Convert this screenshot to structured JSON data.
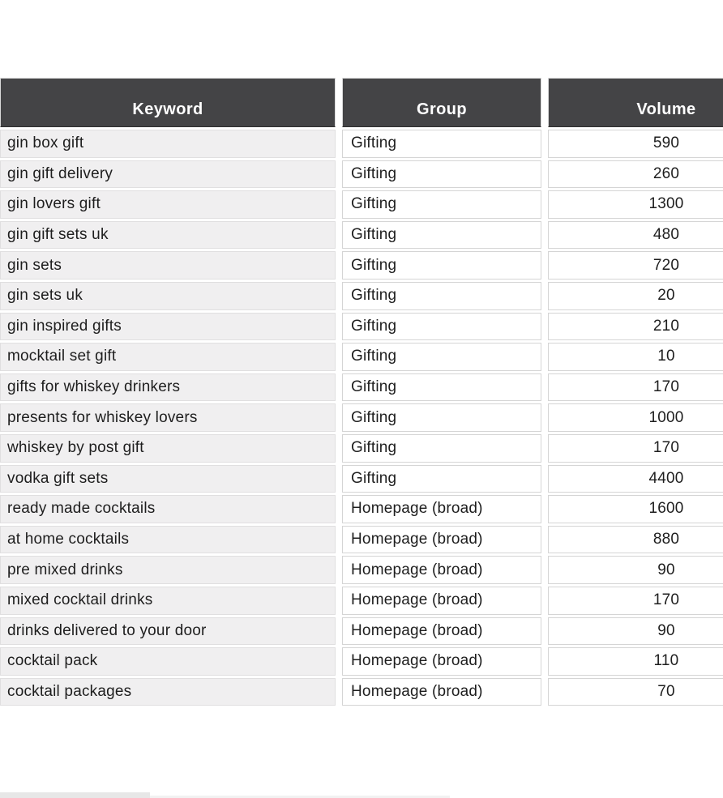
{
  "colors": {
    "header_bg": "#444446",
    "header_text": "#ffffff",
    "keyword_cell_bg": "#f0eff0",
    "keyword_cell_border": "#e0dfe0",
    "cell_border": "#d5d5d5",
    "body_text": "#1e1e1e"
  },
  "table": {
    "columns": [
      {
        "key": "keyword",
        "label": "Keyword"
      },
      {
        "key": "group",
        "label": "Group"
      },
      {
        "key": "volume",
        "label": "Volume"
      }
    ],
    "rows": [
      {
        "keyword": "gin box gift",
        "group": "Gifting",
        "volume": "590"
      },
      {
        "keyword": "gin gift delivery",
        "group": "Gifting",
        "volume": "260"
      },
      {
        "keyword": "gin lovers gift",
        "group": "Gifting",
        "volume": "1300"
      },
      {
        "keyword": "gin gift sets uk",
        "group": "Gifting",
        "volume": "480"
      },
      {
        "keyword": "gin sets",
        "group": "Gifting",
        "volume": "720"
      },
      {
        "keyword": "gin sets uk",
        "group": "Gifting",
        "volume": "20"
      },
      {
        "keyword": "gin inspired gifts",
        "group": "Gifting",
        "volume": "210"
      },
      {
        "keyword": "mocktail set gift",
        "group": "Gifting",
        "volume": "10"
      },
      {
        "keyword": "gifts for whiskey drinkers",
        "group": "Gifting",
        "volume": "170"
      },
      {
        "keyword": "presents for whiskey lovers",
        "group": "Gifting",
        "volume": "1000"
      },
      {
        "keyword": "whiskey by post gift",
        "group": "Gifting",
        "volume": "170"
      },
      {
        "keyword": "vodka gift sets",
        "group": "Gifting",
        "volume": "4400"
      },
      {
        "keyword": "ready made cocktails",
        "group": "Homepage (broad)",
        "volume": "1600"
      },
      {
        "keyword": "at home cocktails",
        "group": "Homepage (broad)",
        "volume": "880"
      },
      {
        "keyword": "pre mixed drinks",
        "group": "Homepage (broad)",
        "volume": "90"
      },
      {
        "keyword": "mixed cocktail drinks",
        "group": "Homepage (broad)",
        "volume": "170"
      },
      {
        "keyword": "drinks delivered to your door",
        "group": "Homepage (broad)",
        "volume": "90"
      },
      {
        "keyword": "cocktail pack",
        "group": "Homepage (broad)",
        "volume": "110"
      },
      {
        "keyword": "cocktail packages",
        "group": "Homepage (broad)",
        "volume": "70"
      }
    ]
  }
}
